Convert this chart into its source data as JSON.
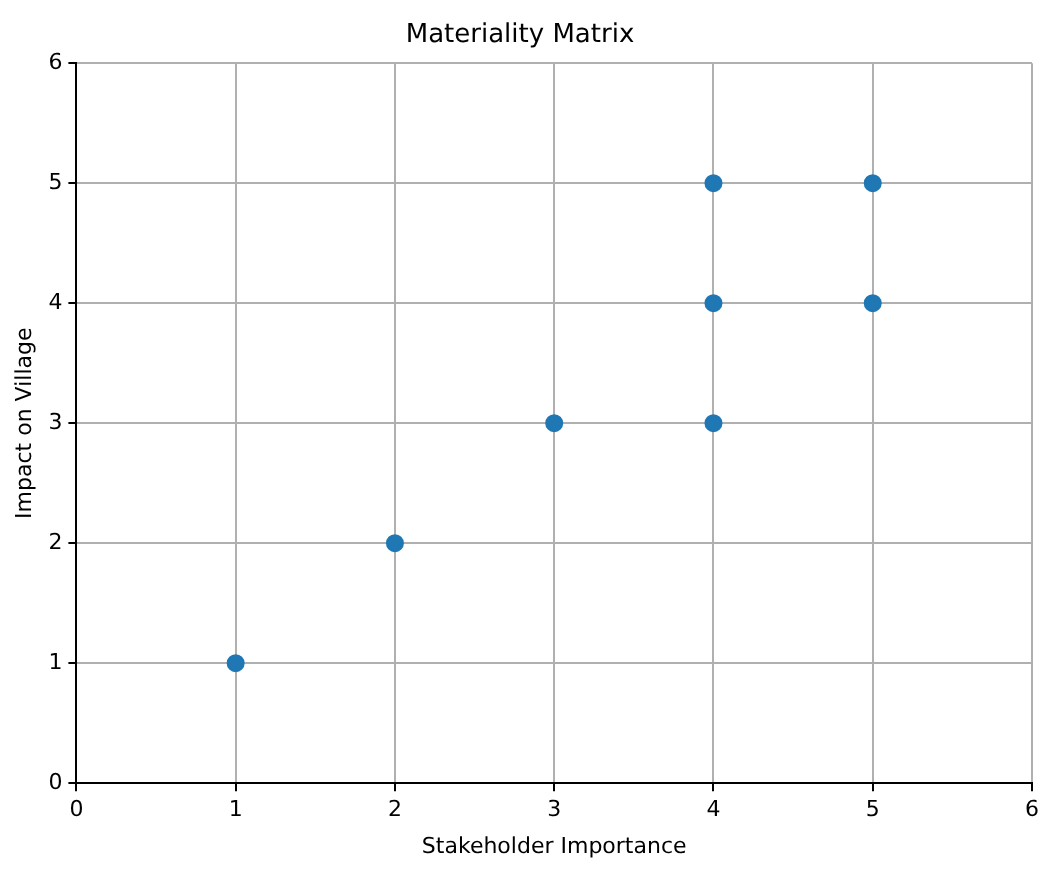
{
  "chart_data": {
    "type": "scatter",
    "title": "Materiality Matrix",
    "xlabel": "Stakeholder Importance",
    "ylabel": "Impact on Village",
    "x": [
      1,
      2,
      3,
      4,
      4,
      4,
      5,
      5
    ],
    "series": [
      {
        "color": "#1f77b4",
        "values": [
          1,
          2,
          3,
          3,
          4,
          5,
          4,
          5
        ]
      }
    ],
    "xlim": [
      0,
      6
    ],
    "ylim": [
      0,
      6
    ],
    "xticks": [
      0,
      1,
      2,
      3,
      4,
      5,
      6
    ],
    "yticks": [
      0,
      1,
      2,
      3,
      4,
      5,
      6
    ],
    "grid": true,
    "legend": false,
    "marker": "circle"
  }
}
